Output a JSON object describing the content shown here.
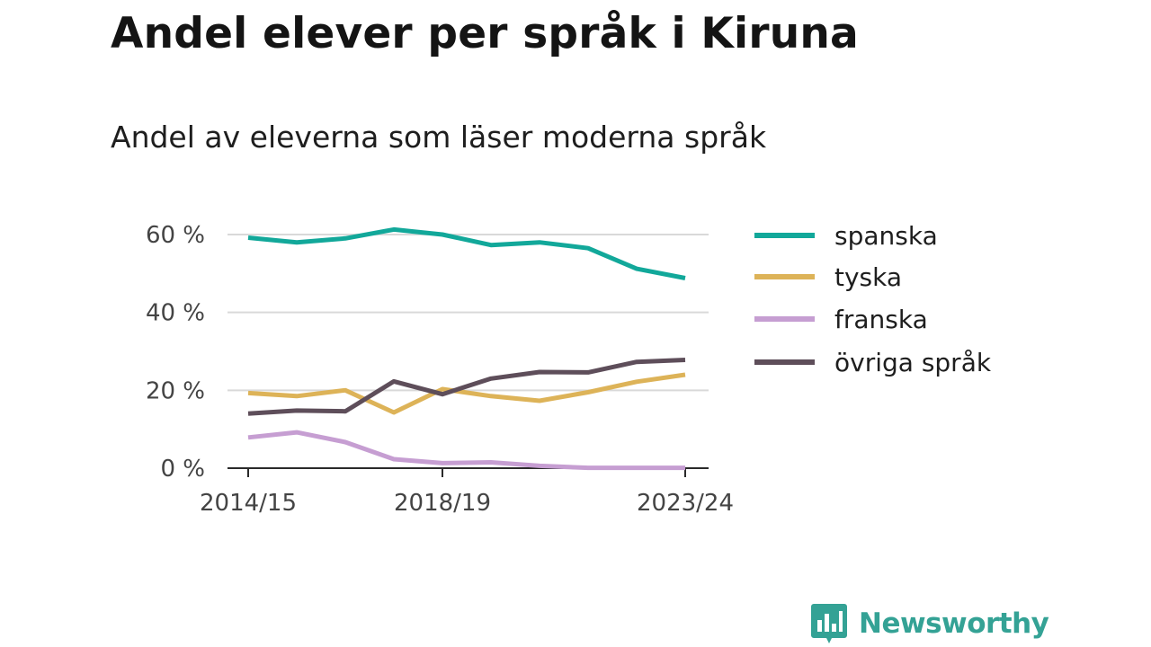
{
  "title": "Andel elever per språk i Kiruna",
  "subtitle": "Andel av eleverna som läser moderna språk",
  "brand": {
    "name": "Newsworthy",
    "icon": "newsworthy-logo-icon",
    "color": "#34a295"
  },
  "chart_data": {
    "type": "line",
    "x": [
      "2014/15",
      "2015/16",
      "2016/17",
      "2017/18",
      "2018/19",
      "2019/20",
      "2020/21",
      "2021/22",
      "2022/23",
      "2023/24"
    ],
    "x_tick_labels": [
      "2014/15",
      "2018/19",
      "2023/24"
    ],
    "y_tick_labels": [
      "0 %",
      "20 %",
      "40 %",
      "60 %"
    ],
    "y_ticks": [
      0,
      20,
      40,
      60
    ],
    "ylim": [
      0,
      60
    ],
    "ylabel_unit": "%",
    "grid": true,
    "legend_placement": "right",
    "series": [
      {
        "name": "spanska",
        "color": "#12a89a",
        "values": [
          59.2,
          58.0,
          59.0,
          61.3,
          60.0,
          57.3,
          58.0,
          56.5,
          51.2,
          48.8
        ]
      },
      {
        "name": "tyska",
        "color": "#ddb358",
        "values": [
          19.3,
          18.5,
          20.0,
          14.3,
          20.3,
          18.5,
          17.3,
          19.5,
          22.2,
          24.0
        ]
      },
      {
        "name": "franska",
        "color": "#c69ed2",
        "values": [
          7.9,
          9.2,
          6.7,
          2.3,
          1.3,
          1.5,
          0.6,
          0.1,
          0.1,
          0.1
        ]
      },
      {
        "name": "övriga språk",
        "color": "#5e4e5a",
        "values": [
          14.0,
          14.8,
          14.6,
          22.3,
          19.0,
          23.0,
          24.7,
          24.6,
          27.3,
          27.8
        ]
      }
    ]
  }
}
